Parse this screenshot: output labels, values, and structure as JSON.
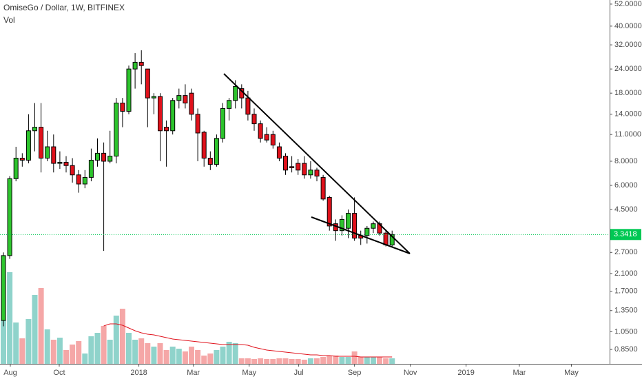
{
  "chart_data": [
    {
      "type": "candlestick",
      "title": "OmiseGo / Dollar, 1W, BITFINEX",
      "log_scale": true,
      "up_color": "#2dc42d",
      "down_color": "#e0111b",
      "categories": [
        null,
        null,
        null,
        null,
        null,
        null,
        null,
        null,
        null,
        null,
        null,
        null,
        null,
        null,
        null,
        null,
        null,
        null,
        null,
        null,
        null,
        null,
        null,
        null,
        null,
        null,
        null,
        null,
        null,
        null,
        null,
        null,
        null,
        null,
        null,
        null,
        null,
        null,
        null,
        null,
        null,
        null,
        null,
        null,
        null,
        null,
        null,
        null,
        null,
        null,
        null,
        null,
        null,
        null,
        null,
        null,
        null,
        null,
        null,
        null,
        null,
        null,
        null
      ],
      "open": [
        1.2,
        2.6,
        6.5,
        8.3,
        8.1,
        11.5,
        12,
        8.3,
        9.5,
        7.8,
        7.9,
        7.6,
        6.8,
        6.1,
        6.6,
        8.1,
        8.8,
        8.0,
        8.5,
        16,
        14.5,
        24,
        26,
        24,
        17,
        17.3,
        12,
        11.5,
        16.5,
        17.5,
        18,
        14,
        11.3,
        8.3,
        7.7,
        10.5,
        15,
        16.5,
        19,
        17,
        14,
        12.5,
        11,
        11,
        9.5,
        8.5,
        7.5,
        7.8,
        7.8,
        6.8,
        7.2,
        6.6,
        5.2,
        3.8,
        3.5,
        3.6,
        4.3,
        3.3,
        3.3,
        3.6,
        3.8,
        3.4,
        2.95
      ],
      "high": [
        2.7,
        6.7,
        9.5,
        8.8,
        14,
        16,
        16,
        11.5,
        11,
        9,
        8.5,
        8.3,
        7.2,
        7.2,
        9.3,
        10.5,
        10,
        11.5,
        17,
        17,
        25,
        29,
        30,
        24,
        18,
        18,
        13,
        17,
        19,
        20,
        19,
        15,
        11.5,
        9,
        11,
        16,
        17,
        21,
        20,
        18.5,
        15,
        13,
        12,
        11.5,
        10,
        8.8,
        8.5,
        8.2,
        8.5,
        8,
        7.4,
        6.8,
        5.3,
        4,
        4.2,
        4.5,
        5.2,
        3.5,
        3.7,
        3.9,
        3.9,
        3.5,
        3.5
      ],
      "low": [
        1.12,
        2.5,
        6.3,
        7.5,
        7.8,
        9,
        7,
        8,
        7,
        7.3,
        7,
        6.2,
        5.5,
        5.8,
        6.3,
        7.5,
        2.75,
        7.8,
        7.8,
        12,
        14,
        19,
        20,
        12,
        14,
        8,
        7.5,
        11,
        15,
        15,
        13,
        8,
        7.5,
        7.2,
        7.5,
        10,
        13,
        15,
        15,
        13,
        11.5,
        10,
        10,
        9.3,
        8,
        6.8,
        7,
        6.8,
        6.5,
        6.5,
        6.3,
        5,
        3.5,
        3.1,
        3.3,
        3.2,
        3.1,
        2.95,
        3.0,
        3.4,
        3.3,
        2.9,
        2.9
      ],
      "close": [
        2.6,
        6.5,
        8.3,
        8.1,
        11.5,
        12,
        8.3,
        9.5,
        7.8,
        7.9,
        7.6,
        6.8,
        6.1,
        6.6,
        8.1,
        8.8,
        8.0,
        8.5,
        16,
        14.5,
        24,
        26,
        25,
        17,
        17.3,
        11.5,
        11.5,
        16.5,
        17.5,
        16,
        14,
        11.2,
        8.3,
        7.7,
        10.5,
        15,
        16.5,
        19.5,
        17,
        14,
        12.5,
        10.5,
        10.3,
        9.7,
        8.3,
        7.2,
        7.4,
        7.2,
        6.8,
        7.2,
        6.7,
        5.1,
        3.7,
        3.5,
        4.0,
        4.3,
        3.2,
        3.2,
        3.6,
        3.8,
        3.4,
        2.95,
        3.3418
      ],
      "last_price": 3.3418,
      "last_color": "#00c853",
      "xlim": [
        -0.55,
        96.7
      ],
      "ylim": [
        0.716,
        54.6
      ],
      "xticks": [
        {
          "value": 1.1,
          "label": "Aug"
        },
        {
          "value": 8.9,
          "label": "Oct"
        },
        {
          "value": 21.6,
          "label": "2018"
        },
        {
          "value": 30.3,
          "label": "Mar"
        },
        {
          "value": 39.2,
          "label": "May"
        },
        {
          "value": 47.1,
          "label": "Jul"
        },
        {
          "value": 56.0,
          "label": "Sep"
        },
        {
          "value": 64.9,
          "label": "Nov"
        },
        {
          "value": 73.8,
          "label": "2019"
        },
        {
          "value": 82.3,
          "label": "Mar"
        },
        {
          "value": 90.6,
          "label": "May"
        }
      ],
      "yticks": [
        {
          "value": 52,
          "label": "52.0000"
        },
        {
          "value": 40,
          "label": "40.0000"
        },
        {
          "value": 32,
          "label": "32.0000"
        },
        {
          "value": 24,
          "label": "24.0000"
        },
        {
          "value": 18,
          "label": "18.0000"
        },
        {
          "value": 14,
          "label": "14.0000"
        },
        {
          "value": 11,
          "label": "11.0000"
        },
        {
          "value": 8,
          "label": "8.0000"
        },
        {
          "value": 6,
          "label": "6.0000"
        },
        {
          "value": 4.5,
          "label": "4.5000"
        },
        {
          "value": 2.7,
          "label": "2.7000"
        },
        {
          "value": 2.1,
          "label": "2.1000"
        },
        {
          "value": 1.7,
          "label": "1.7000"
        },
        {
          "value": 1.35,
          "label": "1.3500"
        },
        {
          "value": 1.05,
          "label": "1.0500"
        },
        {
          "value": 0.85,
          "label": "0.8500"
        }
      ]
    },
    {
      "type": "bar",
      "title": "Vol",
      "up_color": "#8fd3cb",
      "down_color": "#f5a7a7",
      "ma_color": "#e0111b",
      "categories": [
        null,
        null,
        null,
        null,
        null,
        null,
        null,
        null,
        null,
        null,
        null,
        null,
        null,
        null,
        null,
        null,
        null,
        null,
        null,
        null,
        null,
        null,
        null,
        null,
        null,
        null,
        null,
        null,
        null,
        null,
        null,
        null,
        null,
        null,
        null,
        null,
        null,
        null,
        null,
        null,
        null,
        null,
        null,
        null,
        null,
        null,
        null,
        null,
        null,
        null,
        null,
        null,
        null,
        null,
        null,
        null,
        null,
        null,
        null,
        null,
        null,
        null,
        null
      ],
      "values": [
        63,
        133,
        60,
        37,
        65,
        100,
        110,
        50,
        35,
        38,
        20,
        28,
        33,
        15,
        40,
        45,
        55,
        35,
        70,
        80,
        45,
        35,
        37,
        30,
        25,
        30,
        20,
        25,
        22,
        18,
        25,
        20,
        12,
        15,
        20,
        25,
        32,
        30,
        8,
        8,
        7,
        8,
        7,
        7,
        8,
        8,
        7,
        7,
        6,
        8,
        8,
        10,
        12,
        12,
        10,
        10,
        18,
        10,
        10,
        10,
        10,
        8,
        8
      ],
      "ma_values": [
        null,
        null,
        null,
        null,
        null,
        null,
        null,
        null,
        null,
        null,
        null,
        null,
        null,
        null,
        null,
        null,
        55,
        58,
        58,
        56,
        52,
        48,
        45,
        43,
        42,
        40,
        38,
        36,
        35,
        34,
        33,
        32,
        31,
        30,
        29,
        28,
        28,
        28,
        28,
        27,
        24,
        22,
        20,
        19,
        18,
        17,
        16,
        15,
        14,
        13,
        13,
        12,
        12,
        11,
        11,
        11,
        11,
        10,
        10,
        10,
        10,
        10,
        10
      ],
      "ylim": [
        0,
        140
      ]
    }
  ]
}
